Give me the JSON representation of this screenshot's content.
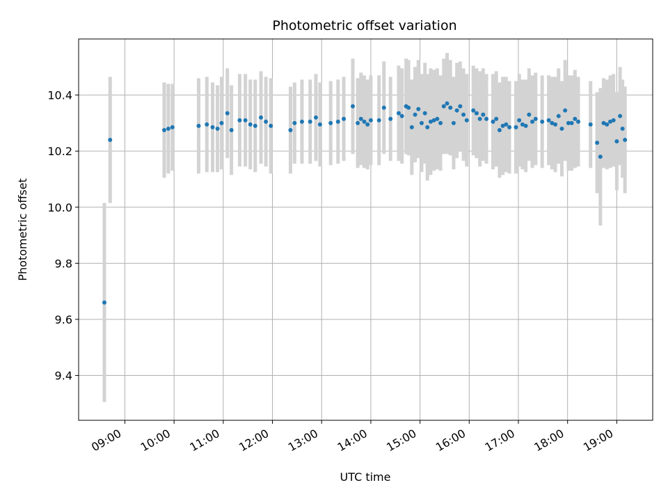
{
  "chart_data": {
    "type": "scatter",
    "title": "Photometric offset variation",
    "xlabel": "UTC time",
    "ylabel": "Photometric offset",
    "x_tick_labels": [
      "09:00",
      "10:00",
      "11:00",
      "12:00",
      "13:00",
      "14:00",
      "15:00",
      "16:00",
      "17:00",
      "18:00",
      "19:00"
    ],
    "x_ticks_hours": [
      9,
      10,
      11,
      12,
      13,
      14,
      15,
      16,
      17,
      18,
      19
    ],
    "xlim_hours": [
      8.06,
      19.73
    ],
    "y_ticks": [
      9.4,
      9.6,
      9.8,
      10.0,
      10.2,
      10.4
    ],
    "y_tick_labels": [
      "9.4",
      "9.6",
      "9.8",
      "10.0",
      "10.2",
      "10.4"
    ],
    "ylim": [
      9.24,
      10.6
    ],
    "grid": true,
    "legend": "none",
    "colors": {
      "points": "#1f77b4",
      "errorbars": "#d3d3d3",
      "grid": "#b0b0b0"
    },
    "series": [
      {
        "x": [
          "08:35",
          "08:42",
          "09:48",
          "09:53",
          "09:58",
          "10:30",
          "10:40",
          "10:47",
          "10:53",
          "10:58",
          "11:05",
          "11:10",
          "11:20",
          "11:27",
          "11:33",
          "11:39",
          "11:46",
          "11:52",
          "11:58",
          "12:22",
          "12:27",
          "12:36",
          "12:46",
          "12:53",
          "12:58",
          "13:11",
          "13:20",
          "13:27",
          "13:38",
          "13:44",
          "13:48",
          "13:52",
          "13:56",
          "14:00",
          "14:10",
          "14:16",
          "14:24",
          "14:34",
          "14:38",
          "14:43",
          "14:46",
          "14:50",
          "14:54",
          "14:58",
          "15:02",
          "15:06",
          "15:09",
          "15:13",
          "15:17",
          "15:21",
          "15:25",
          "15:29",
          "15:33",
          "15:37",
          "15:41",
          "15:45",
          "15:49",
          "15:53",
          "15:57",
          "16:05",
          "16:09",
          "16:13",
          "16:17",
          "16:21",
          "16:29",
          "16:33",
          "16:37",
          "16:41",
          "16:45",
          "16:49",
          "16:57",
          "17:01",
          "17:05",
          "17:09",
          "17:13",
          "17:17",
          "17:21",
          "17:29",
          "17:37",
          "17:41",
          "17:45",
          "17:49",
          "17:53",
          "17:57",
          "18:01",
          "18:05",
          "18:09",
          "18:13",
          "18:28",
          "18:36",
          "18:40",
          "18:44",
          "18:48",
          "18:52",
          "18:56",
          "19:00",
          "19:04",
          "19:07",
          "19:10"
        ],
        "y": [
          9.66,
          10.24,
          10.275,
          10.28,
          10.285,
          10.29,
          10.295,
          10.285,
          10.28,
          10.3,
          10.335,
          10.275,
          10.31,
          10.31,
          10.295,
          10.29,
          10.32,
          10.305,
          10.29,
          10.275,
          10.3,
          10.305,
          10.305,
          10.32,
          10.295,
          10.3,
          10.305,
          10.315,
          10.36,
          10.3,
          10.315,
          10.305,
          10.295,
          10.31,
          10.31,
          10.355,
          10.315,
          10.335,
          10.325,
          10.36,
          10.355,
          10.285,
          10.33,
          10.35,
          10.3,
          10.335,
          10.285,
          10.305,
          10.31,
          10.315,
          10.3,
          10.36,
          10.37,
          10.355,
          10.3,
          10.345,
          10.36,
          10.33,
          10.31,
          10.345,
          10.335,
          10.315,
          10.33,
          10.315,
          10.305,
          10.315,
          10.275,
          10.29,
          10.295,
          10.285,
          10.285,
          10.31,
          10.295,
          10.29,
          10.33,
          10.305,
          10.315,
          10.305,
          10.31,
          10.3,
          10.295,
          10.325,
          10.28,
          10.345,
          10.3,
          10.3,
          10.315,
          10.305,
          10.295,
          10.23,
          10.18,
          10.3,
          10.295,
          10.305,
          10.31,
          10.235,
          10.325,
          10.28,
          10.24
        ],
        "yerr": [
          0.355,
          0.225,
          0.17,
          0.16,
          0.155,
          0.17,
          0.17,
          0.16,
          0.155,
          0.165,
          0.16,
          0.16,
          0.165,
          0.165,
          0.16,
          0.165,
          0.165,
          0.16,
          0.17,
          0.155,
          0.145,
          0.15,
          0.15,
          0.155,
          0.15,
          0.15,
          0.15,
          0.15,
          0.17,
          0.16,
          0.165,
          0.165,
          0.16,
          0.16,
          0.16,
          0.165,
          0.15,
          0.17,
          0.17,
          0.17,
          0.17,
          0.17,
          0.17,
          0.175,
          0.175,
          0.18,
          0.19,
          0.19,
          0.18,
          0.18,
          0.17,
          0.17,
          0.18,
          0.17,
          0.165,
          0.17,
          0.16,
          0.165,
          0.165,
          0.16,
          0.16,
          0.17,
          0.165,
          0.16,
          0.17,
          0.17,
          0.17,
          0.175,
          0.17,
          0.165,
          0.165,
          0.165,
          0.16,
          0.165,
          0.165,
          0.165,
          0.165,
          0.165,
          0.16,
          0.165,
          0.17,
          0.17,
          0.17,
          0.18,
          0.17,
          0.17,
          0.175,
          0.16,
          0.155,
          0.18,
          0.245,
          0.16,
          0.16,
          0.165,
          0.165,
          0.175,
          0.175,
          0.175,
          0.19
        ]
      }
    ]
  }
}
